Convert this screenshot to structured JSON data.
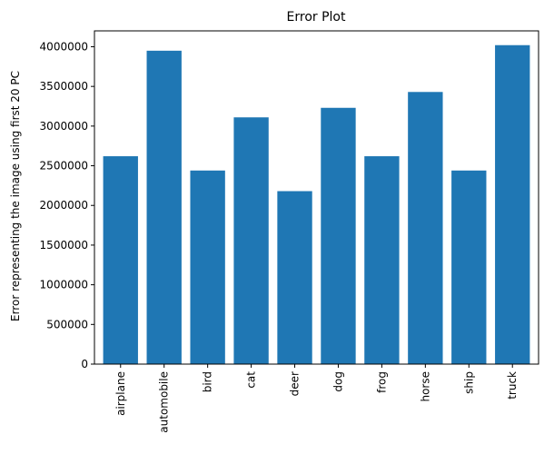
{
  "chart_data": {
    "type": "bar",
    "title": "Error Plot",
    "xlabel": "",
    "ylabel": "Error representing the image using first 20 PC",
    "categories": [
      "airplane",
      "automobile",
      "bird",
      "cat",
      "deer",
      "dog",
      "frog",
      "horse",
      "ship",
      "truck"
    ],
    "values": [
      2620000,
      3950000,
      2440000,
      3110000,
      2180000,
      3230000,
      2620000,
      3430000,
      2440000,
      4020000
    ],
    "ylim": [
      0,
      4200000
    ],
    "yticks": [
      0,
      500000,
      1000000,
      1500000,
      2000000,
      2500000,
      3000000,
      3500000,
      4000000
    ],
    "ytick_labels": [
      "0",
      "500000",
      "1000000",
      "1500000",
      "2000000",
      "2500000",
      "3000000",
      "3500000",
      "4000000"
    ],
    "bar_color": "#1f77b4",
    "grid": false,
    "legend": "none"
  }
}
